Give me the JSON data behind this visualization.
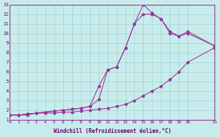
{
  "xlabel": "Windchill (Refroidissement éolien,°C)",
  "xlim": [
    0,
    23
  ],
  "ylim": [
    1,
    13
  ],
  "xticks": [
    0,
    1,
    2,
    3,
    4,
    5,
    6,
    7,
    8,
    9,
    10,
    11,
    12,
    13,
    14,
    15,
    16,
    17,
    18,
    19,
    20,
    23
  ],
  "yticks": [
    1,
    2,
    3,
    4,
    5,
    6,
    7,
    8,
    9,
    10,
    11,
    12,
    13
  ],
  "background_color": "#c8ecec",
  "grid_color": "#a0d0d0",
  "line_color": "#993399",
  "line1_x": [
    0,
    1,
    2,
    3,
    4,
    5,
    6,
    7,
    8,
    9,
    10,
    11,
    12,
    13,
    14,
    15,
    16,
    17,
    18,
    19,
    20,
    23
  ],
  "line1_y": [
    1.5,
    1.5,
    1.5,
    1.7,
    1.7,
    1.7,
    1.8,
    1.8,
    1.9,
    2.0,
    2.1,
    2.2,
    2.4,
    2.6,
    3.0,
    3.5,
    4.0,
    4.5,
    5.2,
    6.0,
    7.0,
    8.5
  ],
  "line2_x": [
    0,
    1,
    2,
    3,
    4,
    5,
    6,
    7,
    8,
    9,
    10,
    11,
    12,
    13,
    14,
    15,
    16,
    17,
    18,
    19,
    20,
    23
  ],
  "line2_y": [
    1.5,
    1.5,
    1.6,
    1.7,
    1.8,
    1.9,
    2.0,
    2.1,
    2.2,
    2.4,
    4.5,
    6.2,
    6.5,
    8.5,
    11.0,
    12.0,
    12.0,
    11.5,
    10.2,
    9.7,
    10.2,
    8.7
  ],
  "line3_x": [
    0,
    1,
    2,
    3,
    4,
    5,
    6,
    7,
    8,
    9,
    10,
    11,
    12,
    13,
    14,
    15,
    16,
    17,
    18,
    19,
    20,
    23
  ],
  "line3_y": [
    1.5,
    1.5,
    1.6,
    1.7,
    1.8,
    1.9,
    2.0,
    2.1,
    2.2,
    2.4,
    3.1,
    6.2,
    6.5,
    8.5,
    11.0,
    13.0,
    12.1,
    11.5,
    10.0,
    9.7,
    10.0,
    8.7
  ]
}
